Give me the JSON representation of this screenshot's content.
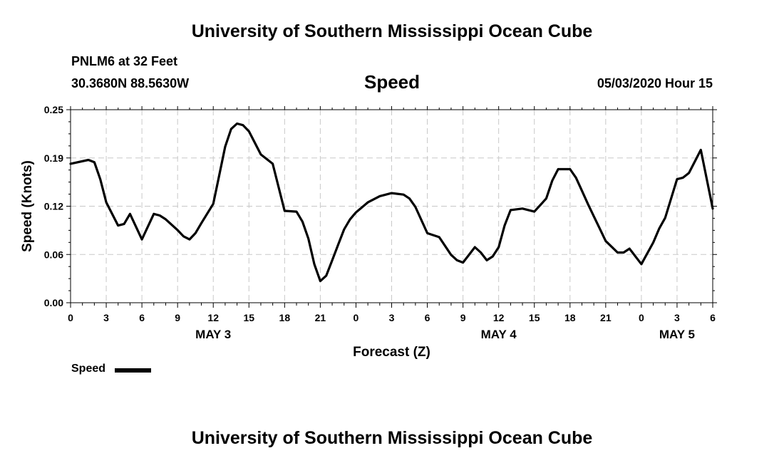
{
  "header": {
    "title_top": "University of Southern Mississippi Ocean Cube",
    "title_bottom": "University of Southern Mississippi Ocean Cube",
    "station": "PNLM6 at 32 Feet",
    "coords": "30.3680N 88.5630W",
    "variable": "Speed",
    "issued": "05/03/2020 Hour 15"
  },
  "chart_data": {
    "type": "line",
    "title": "Speed",
    "xlabel": "Forecast (Z)",
    "ylabel": "Speed (Knots)",
    "ylim": [
      0,
      0.25
    ],
    "xlim_hours": [
      0,
      54
    ],
    "y_ticks": [
      "0.00",
      "0.06",
      "0.12",
      "0.19",
      "0.25"
    ],
    "x_ticks": [
      "0",
      "3",
      "6",
      "9",
      "12",
      "15",
      "18",
      "21",
      "0",
      "3",
      "6",
      "9",
      "12",
      "15",
      "18",
      "21",
      "0",
      "3",
      "6"
    ],
    "date_labels": [
      {
        "label": "MAY 3",
        "hour": 12
      },
      {
        "label": "MAY 4",
        "hour": 36
      },
      {
        "label": "MAY 5",
        "hour": 51
      }
    ],
    "grid": true,
    "series": [
      {
        "name": "Speed",
        "color": "#000000",
        "x": [
          0,
          1.5,
          2,
          2.5,
          3,
          4,
          4.5,
          5,
          6,
          7,
          7.5,
          8,
          9,
          9.5,
          10,
          10.5,
          11,
          12,
          12.5,
          13,
          13.5,
          14,
          14.5,
          15,
          16,
          17,
          18,
          19,
          19.5,
          20,
          20.5,
          21,
          21.5,
          22,
          22.5,
          23,
          23.5,
          24,
          25,
          26,
          27,
          28,
          28.5,
          29,
          30,
          31,
          32,
          32.5,
          33,
          34,
          34.5,
          35,
          35.5,
          36,
          36.5,
          37,
          38,
          39,
          40,
          40.5,
          41,
          42,
          42.5,
          43,
          43.5,
          44,
          44.5,
          45,
          46,
          46.5,
          47,
          48,
          49,
          49.5,
          50,
          51,
          51.5,
          52,
          53,
          54
        ],
        "y": [
          0.18,
          0.185,
          0.182,
          0.16,
          0.13,
          0.1,
          0.102,
          0.115,
          0.082,
          0.115,
          0.113,
          0.108,
          0.094,
          0.086,
          0.082,
          0.09,
          0.103,
          0.128,
          0.165,
          0.202,
          0.225,
          0.232,
          0.23,
          0.222,
          0.192,
          0.18,
          0.119,
          0.118,
          0.105,
          0.083,
          0.05,
          0.028,
          0.035,
          0.055,
          0.075,
          0.095,
          0.108,
          0.117,
          0.13,
          0.138,
          0.142,
          0.14,
          0.135,
          0.124,
          0.09,
          0.085,
          0.062,
          0.055,
          0.052,
          0.072,
          0.065,
          0.055,
          0.06,
          0.072,
          0.1,
          0.12,
          0.122,
          0.118,
          0.135,
          0.158,
          0.173,
          0.173,
          0.162,
          0.145,
          0.128,
          0.112,
          0.096,
          0.08,
          0.065,
          0.065,
          0.07,
          0.05,
          0.078,
          0.096,
          0.11,
          0.16,
          0.162,
          0.168,
          0.198,
          0.122
        ]
      }
    ],
    "legend": {
      "label": "Speed",
      "position": "bottom-left"
    }
  }
}
